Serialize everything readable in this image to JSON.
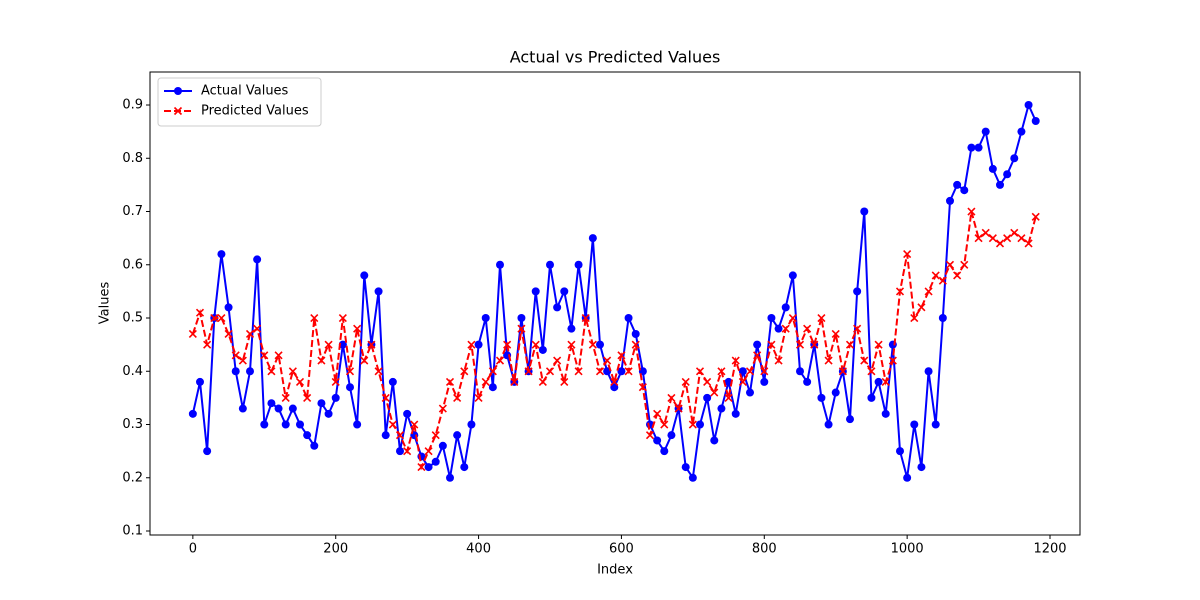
{
  "chart_data": {
    "type": "line",
    "title": "Actual vs Predicted Values",
    "x_label": "Index",
    "y_label": "Values",
    "x": [
      0,
      10,
      20,
      30,
      40,
      50,
      60,
      70,
      80,
      90,
      100,
      110,
      120,
      130,
      140,
      150,
      160,
      170,
      180,
      190,
      200,
      210,
      220,
      230,
      240,
      250,
      260,
      270,
      280,
      290,
      300,
      310,
      320,
      330,
      340,
      350,
      360,
      370,
      380,
      390,
      400,
      410,
      420,
      430,
      440,
      450,
      460,
      470,
      480,
      490,
      500,
      510,
      520,
      530,
      540,
      550,
      560,
      570,
      580,
      590,
      600,
      610,
      620,
      630,
      640,
      650,
      660,
      670,
      680,
      690,
      700,
      710,
      720,
      730,
      740,
      750,
      760,
      770,
      780,
      790,
      800,
      810,
      820,
      830,
      840,
      850,
      860,
      870,
      880,
      890,
      900,
      910,
      920,
      930,
      940,
      950,
      960,
      970,
      980,
      990,
      1000,
      1010,
      1020,
      1030,
      1040,
      1050,
      1060,
      1070,
      1080,
      1090,
      1100,
      1110,
      1120,
      1130,
      1140,
      1150,
      1160,
      1170,
      1180
    ],
    "series": [
      {
        "name": "Actual Values",
        "color": "#0000ff",
        "marker": "circle",
        "dashed": false,
        "values": [
          0.32,
          0.38,
          0.25,
          0.5,
          0.62,
          0.52,
          0.4,
          0.33,
          0.4,
          0.61,
          0.3,
          0.34,
          0.33,
          0.3,
          0.33,
          0.3,
          0.28,
          0.26,
          0.34,
          0.32,
          0.35,
          0.45,
          0.37,
          0.3,
          0.58,
          0.45,
          0.55,
          0.28,
          0.38,
          0.25,
          0.32,
          0.28,
          0.24,
          0.22,
          0.23,
          0.26,
          0.2,
          0.28,
          0.22,
          0.3,
          0.45,
          0.5,
          0.37,
          0.6,
          0.43,
          0.38,
          0.5,
          0.4,
          0.55,
          0.44,
          0.6,
          0.52,
          0.55,
          0.48,
          0.6,
          0.5,
          0.65,
          0.45,
          0.4,
          0.37,
          0.4,
          0.5,
          0.47,
          0.4,
          0.3,
          0.27,
          0.25,
          0.28,
          0.33,
          0.22,
          0.2,
          0.3,
          0.35,
          0.27,
          0.33,
          0.38,
          0.32,
          0.4,
          0.36,
          0.45,
          0.38,
          0.5,
          0.48,
          0.52,
          0.58,
          0.4,
          0.38,
          0.45,
          0.35,
          0.3,
          0.36,
          0.4,
          0.31,
          0.55,
          0.7,
          0.35,
          0.38,
          0.32,
          0.45,
          0.25,
          0.2,
          0.3,
          0.22,
          0.4,
          0.3,
          0.5,
          0.72,
          0.75,
          0.74,
          0.82,
          0.82,
          0.85,
          0.78,
          0.75,
          0.77,
          0.8,
          0.85,
          0.9,
          0.87
        ]
      },
      {
        "name": "Predicted Values",
        "color": "#ff0000",
        "marker": "x",
        "dashed": true,
        "values": [
          0.47,
          0.51,
          0.45,
          0.5,
          0.5,
          0.47,
          0.43,
          0.42,
          0.47,
          0.48,
          0.43,
          0.4,
          0.43,
          0.35,
          0.4,
          0.38,
          0.35,
          0.5,
          0.42,
          0.45,
          0.38,
          0.5,
          0.4,
          0.48,
          0.42,
          0.45,
          0.4,
          0.35,
          0.3,
          0.28,
          0.25,
          0.3,
          0.22,
          0.25,
          0.28,
          0.33,
          0.38,
          0.35,
          0.4,
          0.45,
          0.35,
          0.38,
          0.4,
          0.42,
          0.45,
          0.38,
          0.48,
          0.4,
          0.45,
          0.38,
          0.4,
          0.42,
          0.38,
          0.45,
          0.4,
          0.5,
          0.45,
          0.4,
          0.42,
          0.38,
          0.43,
          0.4,
          0.45,
          0.37,
          0.28,
          0.32,
          0.3,
          0.35,
          0.33,
          0.38,
          0.3,
          0.4,
          0.38,
          0.36,
          0.4,
          0.35,
          0.42,
          0.38,
          0.4,
          0.43,
          0.4,
          0.45,
          0.42,
          0.48,
          0.5,
          0.45,
          0.48,
          0.45,
          0.5,
          0.42,
          0.47,
          0.4,
          0.45,
          0.48,
          0.42,
          0.4,
          0.45,
          0.38,
          0.42,
          0.55,
          0.62,
          0.5,
          0.52,
          0.55,
          0.58,
          0.57,
          0.6,
          0.58,
          0.6,
          0.7,
          0.65,
          0.66,
          0.65,
          0.64,
          0.65,
          0.66,
          0.65,
          0.64,
          0.69
        ]
      }
    ],
    "xlim": [
      -60,
      1242
    ],
    "ylim": [
      0.0925,
      0.962
    ],
    "xticks": [
      0,
      200,
      400,
      600,
      800,
      1000,
      1200
    ],
    "yticks": [
      0.1,
      0.2,
      0.3,
      0.4,
      0.5,
      0.6,
      0.7,
      0.8,
      0.9
    ],
    "legend": "upper left"
  }
}
